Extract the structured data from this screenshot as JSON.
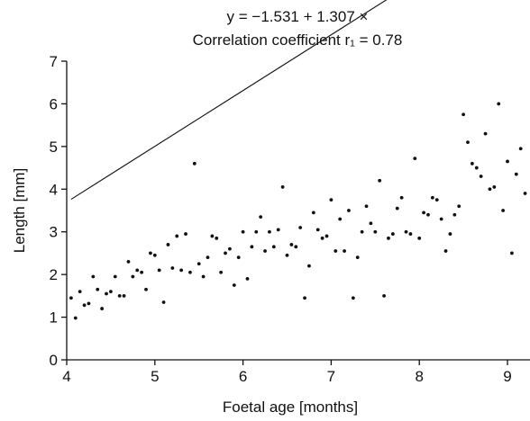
{
  "chart_data": {
    "type": "scatter",
    "title": "y = −1.531 + 1.307 ×",
    "subtitle": "Correlation  coefficient r₁ = 0.78",
    "xlabel": "Foetal  age [months]",
    "ylabel": "Length [mm]",
    "xlim": [
      4,
      9.2
    ],
    "ylim": [
      0,
      7
    ],
    "xticks": [
      4,
      5,
      6,
      7,
      8,
      9
    ],
    "yticks": [
      0,
      1,
      2,
      3,
      4,
      5,
      6,
      7
    ],
    "grid": false,
    "regression": {
      "intercept": -1.531,
      "slope": 1.307,
      "x_start": 4.05,
      "x_end": 9.2
    },
    "points": [
      [
        4.05,
        1.45
      ],
      [
        4.1,
        0.98
      ],
      [
        4.15,
        1.6
      ],
      [
        4.2,
        1.28
      ],
      [
        4.25,
        1.32
      ],
      [
        4.3,
        1.95
      ],
      [
        4.35,
        1.65
      ],
      [
        4.4,
        1.2
      ],
      [
        4.45,
        1.55
      ],
      [
        4.5,
        1.6
      ],
      [
        4.55,
        1.95
      ],
      [
        4.6,
        1.5
      ],
      [
        4.65,
        1.5
      ],
      [
        4.7,
        2.3
      ],
      [
        4.75,
        1.95
      ],
      [
        4.8,
        2.1
      ],
      [
        4.85,
        2.05
      ],
      [
        4.9,
        1.65
      ],
      [
        4.95,
        2.5
      ],
      [
        5.0,
        2.45
      ],
      [
        5.05,
        2.1
      ],
      [
        5.1,
        1.35
      ],
      [
        5.15,
        2.7
      ],
      [
        5.2,
        2.15
      ],
      [
        5.25,
        2.9
      ],
      [
        5.3,
        2.1
      ],
      [
        5.35,
        2.95
      ],
      [
        5.4,
        2.05
      ],
      [
        5.45,
        4.6
      ],
      [
        5.5,
        2.25
      ],
      [
        5.55,
        1.95
      ],
      [
        5.6,
        2.4
      ],
      [
        5.65,
        2.9
      ],
      [
        5.7,
        2.85
      ],
      [
        5.75,
        2.05
      ],
      [
        5.8,
        2.5
      ],
      [
        5.85,
        2.6
      ],
      [
        5.9,
        1.75
      ],
      [
        5.95,
        2.4
      ],
      [
        6.0,
        3.0
      ],
      [
        6.05,
        1.9
      ],
      [
        6.1,
        2.65
      ],
      [
        6.15,
        3.0
      ],
      [
        6.2,
        3.35
      ],
      [
        6.25,
        2.55
      ],
      [
        6.3,
        3.0
      ],
      [
        6.35,
        2.65
      ],
      [
        6.4,
        3.05
      ],
      [
        6.45,
        4.05
      ],
      [
        6.5,
        2.45
      ],
      [
        6.55,
        2.7
      ],
      [
        6.6,
        2.65
      ],
      [
        6.65,
        3.1
      ],
      [
        6.7,
        1.45
      ],
      [
        6.75,
        2.2
      ],
      [
        6.8,
        3.45
      ],
      [
        6.85,
        3.05
      ],
      [
        6.9,
        2.85
      ],
      [
        6.95,
        2.9
      ],
      [
        7.0,
        3.75
      ],
      [
        7.05,
        2.55
      ],
      [
        7.1,
        3.3
      ],
      [
        7.15,
        2.55
      ],
      [
        7.2,
        3.5
      ],
      [
        7.25,
        1.45
      ],
      [
        7.3,
        2.4
      ],
      [
        7.35,
        3.0
      ],
      [
        7.4,
        3.6
      ],
      [
        7.45,
        3.2
      ],
      [
        7.5,
        3.0
      ],
      [
        7.55,
        4.2
      ],
      [
        7.6,
        1.5
      ],
      [
        7.65,
        2.85
      ],
      [
        7.7,
        2.95
      ],
      [
        7.75,
        3.55
      ],
      [
        7.8,
        3.8
      ],
      [
        7.85,
        3.0
      ],
      [
        7.9,
        2.95
      ],
      [
        7.95,
        4.72
      ],
      [
        8.0,
        2.85
      ],
      [
        8.05,
        3.45
      ],
      [
        8.1,
        3.4
      ],
      [
        8.15,
        3.8
      ],
      [
        8.2,
        3.75
      ],
      [
        8.25,
        3.3
      ],
      [
        8.3,
        2.55
      ],
      [
        8.35,
        2.95
      ],
      [
        8.4,
        3.4
      ],
      [
        8.45,
        3.6
      ],
      [
        8.5,
        5.75
      ],
      [
        8.55,
        5.1
      ],
      [
        8.6,
        4.6
      ],
      [
        8.65,
        4.5
      ],
      [
        8.7,
        4.3
      ],
      [
        8.75,
        5.3
      ],
      [
        8.8,
        4.0
      ],
      [
        8.85,
        4.05
      ],
      [
        8.9,
        6.0
      ],
      [
        8.95,
        3.5
      ],
      [
        9.0,
        4.65
      ],
      [
        9.05,
        2.5
      ],
      [
        9.1,
        4.35
      ],
      [
        9.15,
        4.95
      ],
      [
        9.2,
        3.9
      ]
    ]
  }
}
